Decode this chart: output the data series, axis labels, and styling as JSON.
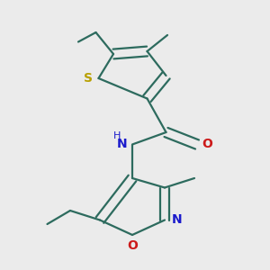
{
  "background_color": "#ebebeb",
  "bond_color": "#2d6b5e",
  "S_color": "#b8a000",
  "N_color": "#1a1acc",
  "O_color": "#cc1a1a",
  "line_width": 1.6,
  "dbo": 0.018,
  "figsize": [
    3.0,
    3.0
  ],
  "dpi": 100,
  "xlim": [
    0.0,
    1.0
  ],
  "ylim": [
    0.0,
    1.0
  ],
  "font_size_atom": 10,
  "font_size_h": 8
}
